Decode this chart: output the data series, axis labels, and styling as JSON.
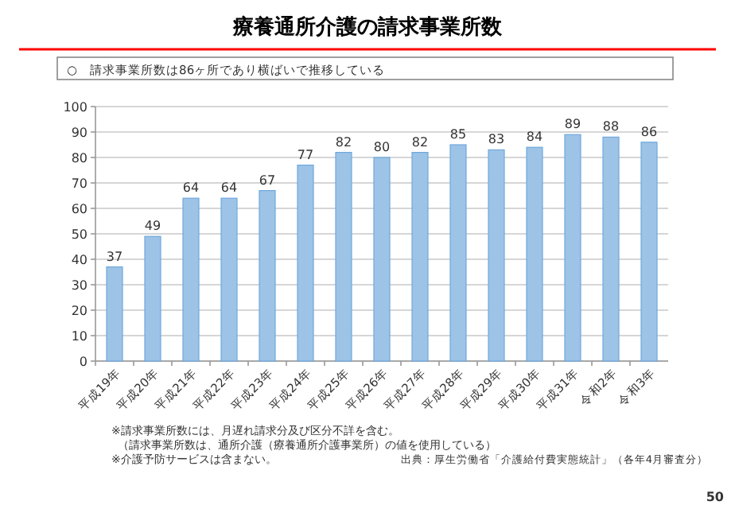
{
  "chart_data": {
    "type": "bar",
    "title": "療養通所介護の請求事業所数",
    "subtitle": "○　請求事業所数は86ヶ所であり横ばいで推移している",
    "categories": [
      "平成19年",
      "平成20年",
      "平成21年",
      "平成22年",
      "平成23年",
      "平成24年",
      "平成25年",
      "平成26年",
      "平成27年",
      "平成28年",
      "平成29年",
      "平成30年",
      "平成31年",
      "令和2年",
      "令和3年"
    ],
    "values": [
      37,
      49,
      64,
      64,
      67,
      77,
      82,
      80,
      82,
      85,
      83,
      84,
      89,
      88,
      86
    ],
    "color": "#9dc3e6",
    "ylim": [
      0,
      100
    ],
    "yticks": [
      0,
      10,
      20,
      30,
      40,
      50,
      60,
      70,
      80,
      90,
      100
    ],
    "grid": "y",
    "data_labels": true,
    "annotations": [
      "※請求事業所数には、月遅れ請求分及び区分不詳を含む。",
      "（請求事業所数は、通所介護（療養通所介護事業所）の値を使用している）",
      "※介護予防サービスは含まない。",
      "出典：厚生労働省「介護給付費実態統計」（各年4月審査分）",
      "50"
    ]
  }
}
